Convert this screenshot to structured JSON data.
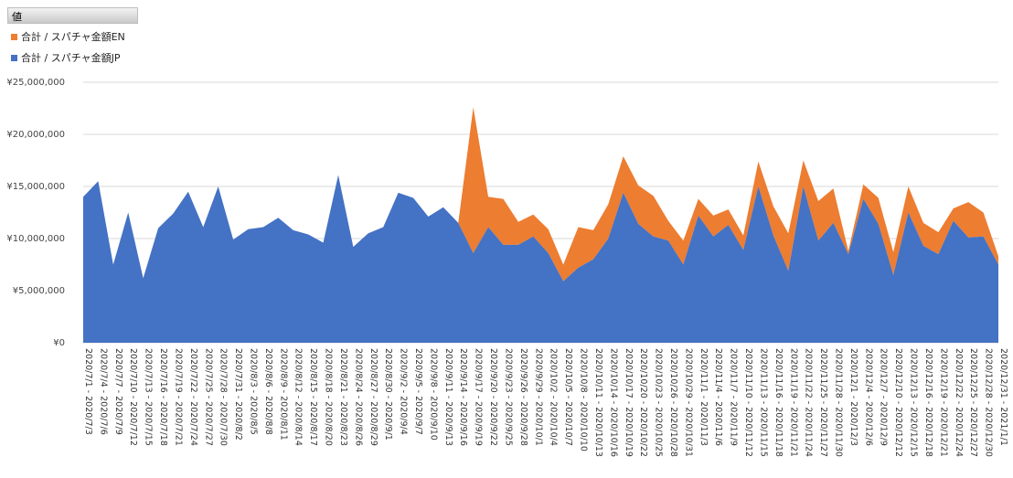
{
  "legend_header": "値",
  "chart_data": {
    "type": "area",
    "stacked": true,
    "title": "",
    "xlabel": "",
    "ylabel": "",
    "ylim": [
      0,
      25000000
    ],
    "yticks": [
      0,
      5000000,
      10000000,
      15000000,
      20000000,
      25000000
    ],
    "ytick_labels": [
      "¥0",
      "¥5,000,000",
      "¥10,000,000",
      "¥15,000,000",
      "¥20,000,000",
      "¥25,000,000"
    ],
    "grid": true,
    "legend_position": "top-left",
    "categories": [
      "2020/7/1 - 2020/7/3",
      "2020/7/4 - 2020/7/6",
      "2020/7/7 - 2020/7/9",
      "2020/7/10 - 2020/7/12",
      "2020/7/13 - 2020/7/15",
      "2020/7/16 - 2020/7/18",
      "2020/7/19 - 2020/7/21",
      "2020/7/22 - 2020/7/24",
      "2020/7/25 - 2020/7/27",
      "2020/7/28 - 2020/7/30",
      "2020/7/31 - 2020/8/2",
      "2020/8/3 - 2020/8/5",
      "2020/8/6 - 2020/8/8",
      "2020/8/9 - 2020/8/11",
      "2020/8/12 - 2020/8/14",
      "2020/8/15 - 2020/8/17",
      "2020/8/18 - 2020/8/20",
      "2020/8/21 - 2020/8/23",
      "2020/8/24 - 2020/8/26",
      "2020/8/27 - 2020/8/29",
      "2020/8/30 - 2020/9/1",
      "2020/9/2 - 2020/9/4",
      "2020/9/5 - 2020/9/7",
      "2020/9/8 - 2020/9/10",
      "2020/9/11 - 2020/9/13",
      "2020/9/14 - 2020/9/16",
      "2020/9/17 - 2020/9/19",
      "2020/9/20 - 2020/9/22",
      "2020/9/23 - 2020/9/25",
      "2020/9/26 - 2020/9/28",
      "2020/9/29 - 2020/10/1",
      "2020/10/2 - 2020/10/4",
      "2020/10/5 - 2020/10/7",
      "2020/10/8 - 2020/10/10",
      "2020/10/11 - 2020/10/13",
      "2020/10/14 - 2020/10/16",
      "2020/10/17 - 2020/10/19",
      "2020/10/20 - 2020/10/22",
      "2020/10/23 - 2020/10/25",
      "2020/10/26 - 2020/10/28",
      "2020/10/29 - 2020/10/31",
      "2020/11/1 - 2020/11/3",
      "2020/11/4 - 2020/11/6",
      "2020/11/7 - 2020/11/9",
      "2020/11/10 - 2020/11/12",
      "2020/11/13 - 2020/11/15",
      "2020/11/16 - 2020/11/18",
      "2020/11/19 - 2020/11/21",
      "2020/11/22 - 2020/11/24",
      "2020/11/25 - 2020/11/27",
      "2020/11/28 - 2020/11/30",
      "2020/12/1 - 2020/12/3",
      "2020/12/4 - 2020/12/6",
      "2020/12/7 - 2020/12/9",
      "2020/12/10 - 2020/12/12",
      "2020/12/13 - 2020/12/15",
      "2020/12/16 - 2020/12/18",
      "2020/12/19 - 2020/12/21",
      "2020/12/22 - 2020/12/24",
      "2020/12/25 - 2020/12/27",
      "2020/12/28 - 2020/12/30",
      "2020/12/31 - 2021/1/1"
    ],
    "series": [
      {
        "name": "合計 / スパチャ金額JP",
        "color": "#4472c4",
        "values": [
          14000000,
          15500000,
          7500000,
          12500000,
          6200000,
          11000000,
          12400000,
          14500000,
          11100000,
          15000000,
          9900000,
          10900000,
          11100000,
          12000000,
          10800000,
          10400000,
          9600000,
          16100000,
          9200000,
          10500000,
          11100000,
          14400000,
          13900000,
          12100000,
          13000000,
          11500000,
          8600000,
          11100000,
          9400000,
          9400000,
          10200000,
          8600000,
          5900000,
          7200000,
          8000000,
          10000000,
          14400000,
          11400000,
          10200000,
          9800000,
          7500000,
          12200000,
          10200000,
          11300000,
          8900000,
          15000000,
          10300000,
          6900000,
          15000000,
          9800000,
          11500000,
          8500000,
          13800000,
          11400000,
          6500000,
          12500000,
          9300000,
          8500000,
          11700000,
          10100000,
          10200000,
          7500000
        ]
      },
      {
        "name": "合計 / スパチャ金額EN",
        "color": "#ed7d31",
        "values": [
          0,
          0,
          0,
          0,
          0,
          0,
          0,
          0,
          0,
          0,
          0,
          0,
          0,
          0,
          0,
          0,
          0,
          0,
          0,
          0,
          0,
          0,
          0,
          0,
          0,
          0,
          14000000,
          2900000,
          4400000,
          2200000,
          2100000,
          2300000,
          1600000,
          3900000,
          2800000,
          3300000,
          3500000,
          3700000,
          3900000,
          1900000,
          2300000,
          1600000,
          2000000,
          1500000,
          1400000,
          2400000,
          2800000,
          3600000,
          2500000,
          3800000,
          3300000,
          300000,
          1400000,
          2500000,
          2200000,
          2500000,
          2200000,
          2100000,
          1200000,
          3400000,
          2300000,
          800000
        ]
      }
    ]
  }
}
